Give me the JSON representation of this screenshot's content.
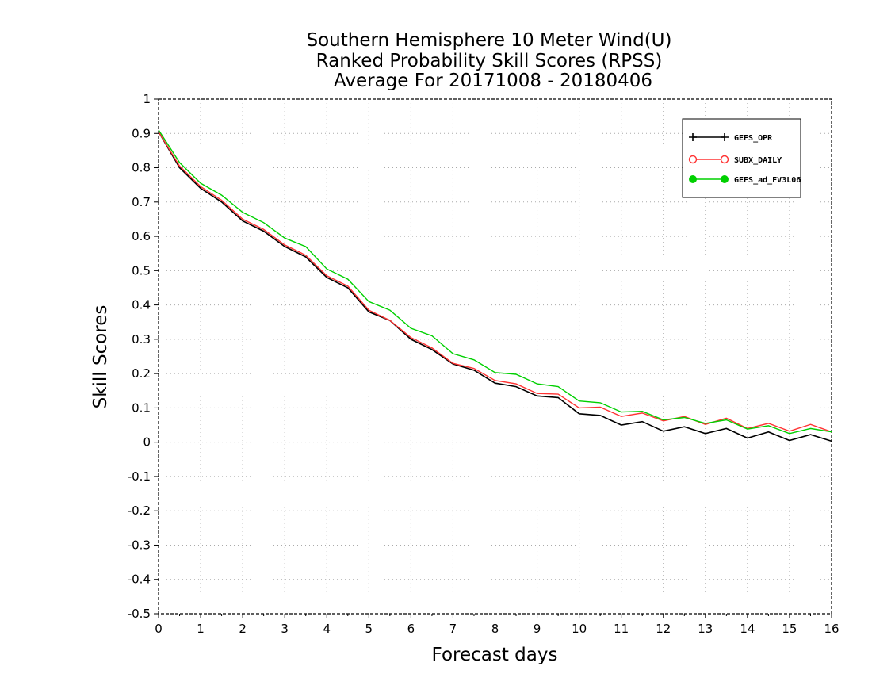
{
  "chart_data": {
    "type": "line",
    "title": [
      "Southern Hemisphere 10 Meter Wind(U)",
      "Ranked Probability Skill Scores (RPSS)",
      "Average For 20171008 - 20180406"
    ],
    "xlabel": "Forecast days",
    "ylabel": "Skill Scores",
    "xlim": [
      0,
      16
    ],
    "ylim": [
      -0.5,
      1
    ],
    "xticks": [
      0,
      1,
      2,
      3,
      4,
      5,
      6,
      7,
      8,
      9,
      10,
      11,
      12,
      13,
      14,
      15,
      16
    ],
    "yticks": [
      -0.5,
      -0.4,
      -0.3,
      -0.2,
      -0.1,
      0,
      0.1,
      0.2,
      0.3,
      0.4,
      0.5,
      0.6,
      0.7,
      0.8,
      0.9,
      1
    ],
    "ytick_labels": [
      "-0.5",
      "-0.4",
      "-0.3",
      "-0.2",
      "-0.1",
      "0",
      "0.1",
      "0.2",
      "0.3",
      "0.4",
      "0.5",
      "0.6",
      "0.7",
      "0.8",
      "0.9",
      "1"
    ],
    "grid": true,
    "legend_position": "top-right",
    "x": [
      0,
      0.5,
      1,
      1.5,
      2,
      2.5,
      3,
      3.5,
      4,
      4.5,
      5,
      5.5,
      6,
      6.5,
      7,
      7.5,
      8,
      8.5,
      9,
      9.5,
      10,
      10.5,
      11,
      11.5,
      12,
      12.5,
      13,
      13.5,
      14,
      14.5,
      15,
      15.5,
      16
    ],
    "series": [
      {
        "name": "GEFS_OPR",
        "color": "#000000",
        "marker": "plus",
        "values": [
          0.905,
          0.8,
          0.74,
          0.7,
          0.645,
          0.615,
          0.57,
          0.54,
          0.48,
          0.45,
          0.38,
          0.355,
          0.3,
          0.27,
          0.228,
          0.21,
          0.172,
          0.162,
          0.135,
          0.13,
          0.083,
          0.078,
          0.05,
          0.06,
          0.032,
          0.045,
          0.025,
          0.04,
          0.012,
          0.03,
          0.005,
          0.022,
          0.003
        ]
      },
      {
        "name": "SUBX_DAILY",
        "color": "#ff3333",
        "marker": "open-circle",
        "values": [
          0.905,
          0.805,
          0.745,
          0.705,
          0.65,
          0.62,
          0.575,
          0.545,
          0.485,
          0.455,
          0.385,
          0.355,
          0.305,
          0.275,
          0.23,
          0.215,
          0.18,
          0.17,
          0.142,
          0.14,
          0.1,
          0.102,
          0.075,
          0.085,
          0.062,
          0.075,
          0.052,
          0.07,
          0.04,
          0.055,
          0.032,
          0.052,
          0.03
        ]
      },
      {
        "name": "GEFS_ad_FV3L06",
        "color": "#00d000",
        "marker": "filled-circle",
        "values": [
          0.91,
          0.815,
          0.755,
          0.72,
          0.67,
          0.64,
          0.595,
          0.57,
          0.505,
          0.475,
          0.41,
          0.385,
          0.332,
          0.31,
          0.258,
          0.24,
          0.203,
          0.198,
          0.17,
          0.162,
          0.12,
          0.115,
          0.088,
          0.09,
          0.065,
          0.072,
          0.055,
          0.065,
          0.038,
          0.048,
          0.025,
          0.04,
          0.03
        ]
      }
    ]
  }
}
